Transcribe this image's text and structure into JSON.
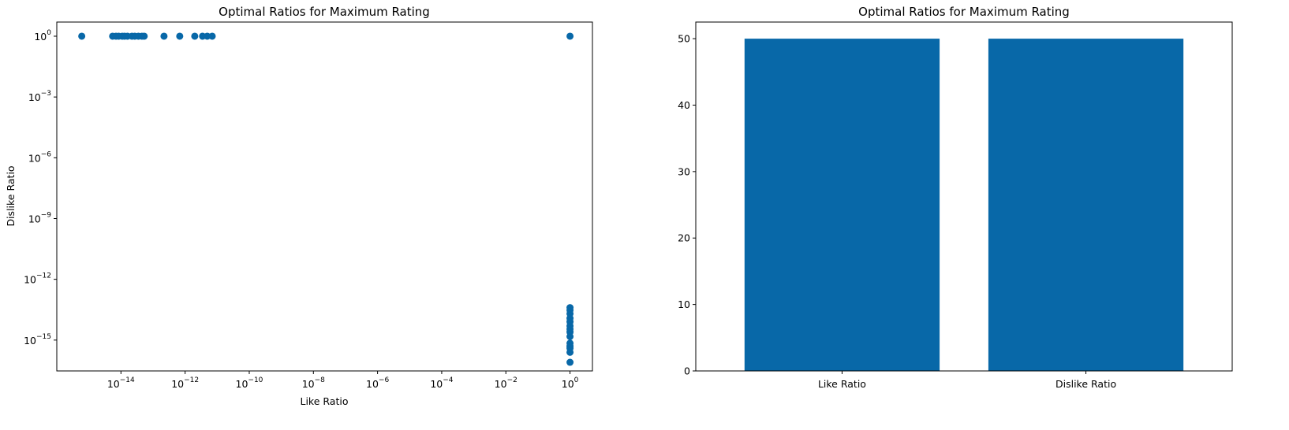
{
  "chart_data": [
    {
      "type": "scatter",
      "title": "Optimal Ratios for Maximum Rating",
      "xlabel": "Like Ratio",
      "ylabel": "Dislike Ratio",
      "xscale": "log",
      "yscale": "log",
      "xlim": [
        1e-16,
        5
      ],
      "ylim": [
        3e-17,
        5
      ],
      "xticks": [
        {
          "value": 1e-14,
          "base": "10",
          "exp": "−14"
        },
        {
          "value": 1e-12,
          "base": "10",
          "exp": "−12"
        },
        {
          "value": 1e-10,
          "base": "10",
          "exp": "−10"
        },
        {
          "value": 1e-08,
          "base": "10",
          "exp": "−8"
        },
        {
          "value": 1e-06,
          "base": "10",
          "exp": "−6"
        },
        {
          "value": 0.0001,
          "base": "10",
          "exp": "−4"
        },
        {
          "value": 0.01,
          "base": "10",
          "exp": "−2"
        },
        {
          "value": 1,
          "base": "10",
          "exp": "0"
        }
      ],
      "yticks": [
        {
          "value": 1e-15,
          "base": "10",
          "exp": "−15"
        },
        {
          "value": 1e-12,
          "base": "10",
          "exp": "−12"
        },
        {
          "value": 1e-09,
          "base": "10",
          "exp": "−9"
        },
        {
          "value": 1e-06,
          "base": "10",
          "exp": "−6"
        },
        {
          "value": 0.001,
          "base": "10",
          "exp": "−3"
        },
        {
          "value": 1,
          "base": "10",
          "exp": "0"
        }
      ],
      "grid": false,
      "color": "#0868a8",
      "points": [
        {
          "x": 6e-16,
          "y": 1
        },
        {
          "x": 5.5e-15,
          "y": 1
        },
        {
          "x": 7e-15,
          "y": 1
        },
        {
          "x": 8.5e-15,
          "y": 1
        },
        {
          "x": 1.1e-14,
          "y": 1
        },
        {
          "x": 1.3e-14,
          "y": 1
        },
        {
          "x": 1.6e-14,
          "y": 1
        },
        {
          "x": 2.2e-14,
          "y": 1
        },
        {
          "x": 2.7e-14,
          "y": 1
        },
        {
          "x": 3.5e-14,
          "y": 1
        },
        {
          "x": 4.5e-14,
          "y": 1
        },
        {
          "x": 5.3e-14,
          "y": 1
        },
        {
          "x": 2.2e-13,
          "y": 1
        },
        {
          "x": 6.8e-13,
          "y": 1
        },
        {
          "x": 2e-12,
          "y": 1
        },
        {
          "x": 3.5e-12,
          "y": 1
        },
        {
          "x": 4.9e-12,
          "y": 1
        },
        {
          "x": 7e-12,
          "y": 1
        },
        {
          "x": 1,
          "y": 1
        },
        {
          "x": 1,
          "y": 4e-14
        },
        {
          "x": 1,
          "y": 3e-14
        },
        {
          "x": 1,
          "y": 2e-14
        },
        {
          "x": 1,
          "y": 1.2e-14
        },
        {
          "x": 1,
          "y": 8e-15
        },
        {
          "x": 1,
          "y": 5e-15
        },
        {
          "x": 1,
          "y": 3.5e-15
        },
        {
          "x": 1,
          "y": 2.5e-15
        },
        {
          "x": 1,
          "y": 1.5e-15
        },
        {
          "x": 1,
          "y": 7e-16
        },
        {
          "x": 1,
          "y": 5e-16
        },
        {
          "x": 1,
          "y": 4e-16
        },
        {
          "x": 1,
          "y": 2.5e-16
        },
        {
          "x": 1,
          "y": 8e-17
        }
      ]
    },
    {
      "type": "bar",
      "title": "Optimal Ratios for Maximum Rating",
      "xlabel": "",
      "ylabel": "",
      "categories": [
        "Like Ratio",
        "Dislike Ratio"
      ],
      "values": [
        50,
        50
      ],
      "ylim": [
        0,
        52.5
      ],
      "yticks": [
        0,
        10,
        20,
        30,
        40,
        50
      ],
      "grid": false,
      "color": "#0868a8"
    }
  ]
}
